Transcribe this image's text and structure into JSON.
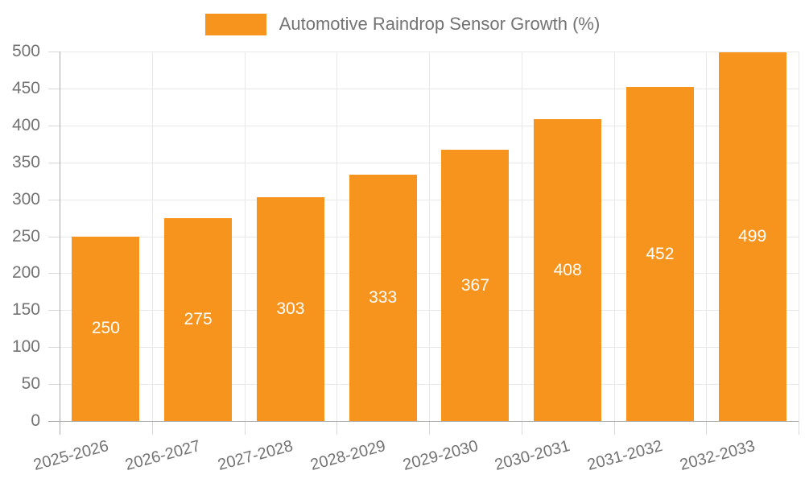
{
  "chart_data": {
    "type": "bar",
    "title": "Automotive Raindrop Sensor Growth (%)",
    "categories": [
      "2025-2026",
      "2026-2027",
      "2027-2028",
      "2028-2029",
      "2029-2030",
      "2030-2031",
      "2031-2032",
      "2032-2033"
    ],
    "values": [
      250,
      275,
      303,
      333,
      367,
      408,
      452,
      499
    ],
    "xlabel": "",
    "ylabel": "",
    "ylim": [
      0,
      500
    ],
    "yticks": [
      0,
      50,
      100,
      150,
      200,
      250,
      300,
      350,
      400,
      450,
      500
    ],
    "grid": "horizontal and vertical category boundaries",
    "legend_position": "top-center",
    "value_labels": "white, centered inside bars",
    "x_label_rotation_deg": -15,
    "colors": {
      "bar": "#F7941E",
      "text": "#737373",
      "axis": "#ABABAB",
      "grid": "#E8E8E8",
      "tick": "#D9D9D9",
      "value_text": "#FFFFFF",
      "background": "#FFFFFF"
    }
  }
}
